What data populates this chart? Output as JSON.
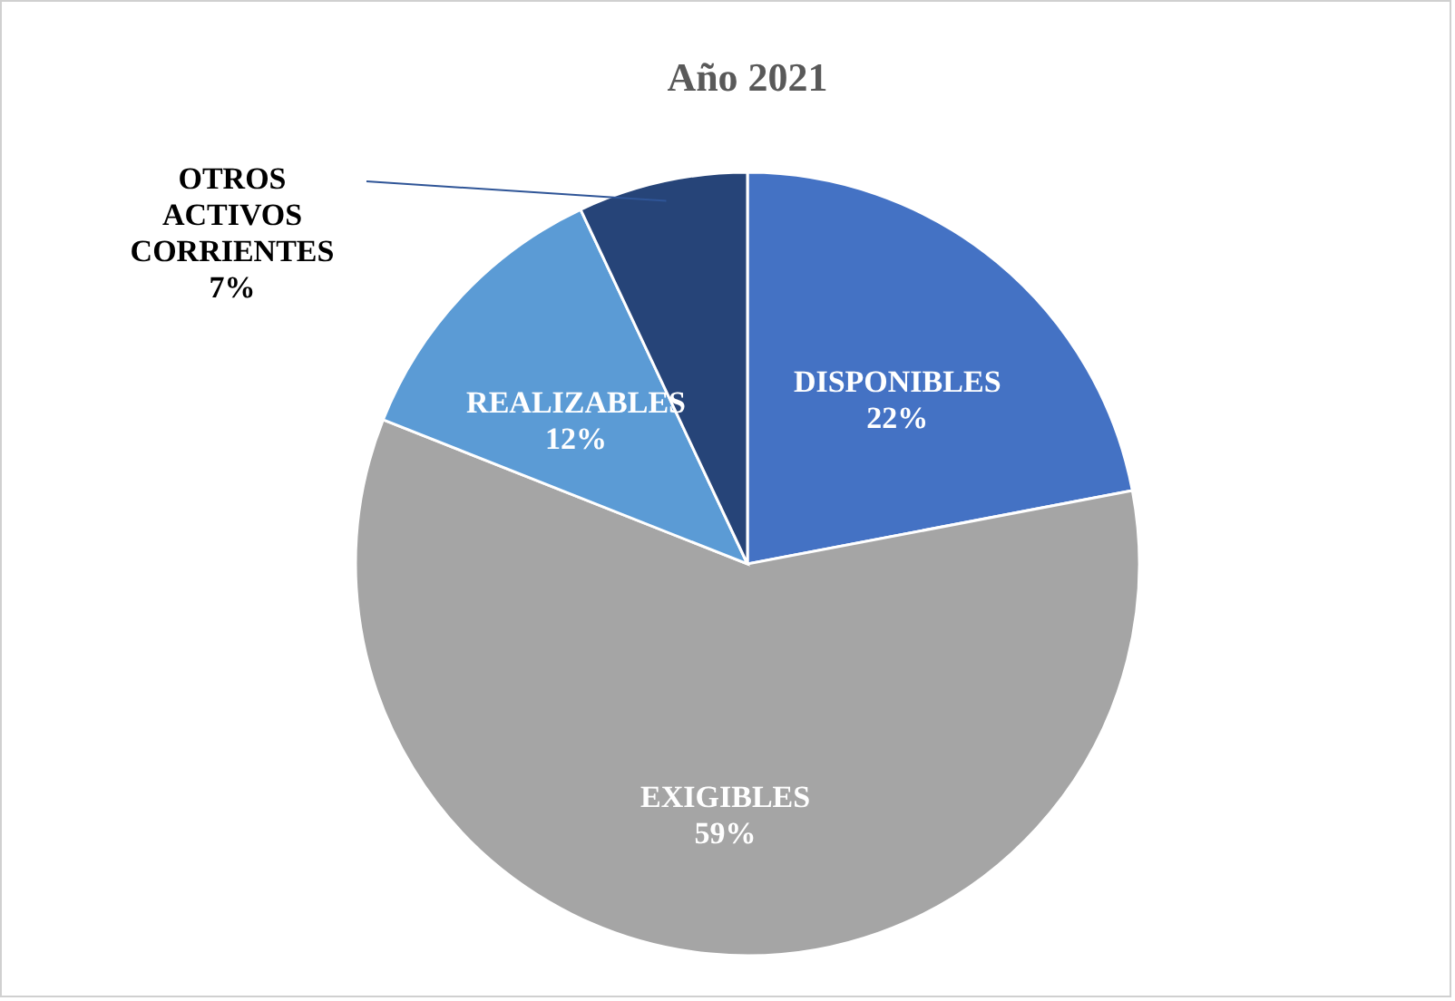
{
  "chart_data": {
    "type": "pie",
    "title": "Año 2021",
    "categories": [
      "DISPONIBLES",
      "EXIGIBLES",
      "REALIZABLES",
      "OTROS ACTIVOS CORRIENTES"
    ],
    "values": [
      22,
      59,
      12,
      7
    ],
    "value_labels": [
      "22%",
      "59%",
      "12%",
      "7%"
    ],
    "colors": [
      "#4472c4",
      "#a5a5a5",
      "#5b9bd5",
      "#264478"
    ],
    "legend": false
  }
}
